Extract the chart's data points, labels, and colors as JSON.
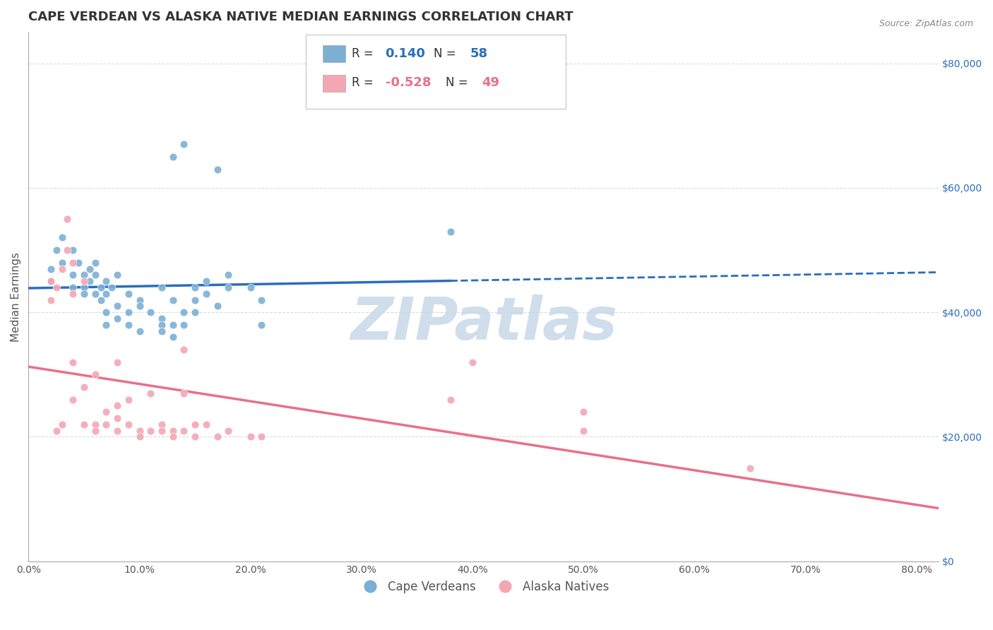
{
  "title": "CAPE VERDEAN VS ALASKA NATIVE MEDIAN EARNINGS CORRELATION CHART",
  "source": "Source: ZipAtlas.com",
  "ylabel": "Median Earnings",
  "xlabel_ticks": [
    "0.0%",
    "10.0%",
    "20.0%",
    "30.0%",
    "40.0%",
    "50.0%",
    "60.0%",
    "70.0%",
    "80.0%"
  ],
  "xlabel_vals": [
    0.0,
    0.1,
    0.2,
    0.3,
    0.4,
    0.5,
    0.6,
    0.7,
    0.8
  ],
  "ytick_labels": [
    "$0",
    "$20,000",
    "$40,000",
    "$60,000",
    "$80,000"
  ],
  "ytick_vals": [
    0,
    20000,
    40000,
    60000,
    80000
  ],
  "ylim": [
    0,
    85000
  ],
  "xlim": [
    0.0,
    0.82
  ],
  "blue_r": "0.140",
  "blue_n": "58",
  "pink_r": "-0.528",
  "pink_n": "49",
  "blue_color": "#7BAFD4",
  "pink_color": "#F4A7B3",
  "blue_line_color": "#2A6EBB",
  "pink_line_color": "#E8708A",
  "blue_scatter": [
    [
      0.02,
      45000
    ],
    [
      0.02,
      47000
    ],
    [
      0.025,
      50000
    ],
    [
      0.03,
      48000
    ],
    [
      0.03,
      52000
    ],
    [
      0.04,
      46000
    ],
    [
      0.04,
      44000
    ],
    [
      0.04,
      50000
    ],
    [
      0.045,
      48000
    ],
    [
      0.05,
      46000
    ],
    [
      0.05,
      44000
    ],
    [
      0.05,
      43000
    ],
    [
      0.055,
      45000
    ],
    [
      0.055,
      47000
    ],
    [
      0.06,
      46000
    ],
    [
      0.06,
      43000
    ],
    [
      0.06,
      48000
    ],
    [
      0.065,
      44000
    ],
    [
      0.065,
      42000
    ],
    [
      0.07,
      45000
    ],
    [
      0.07,
      43000
    ],
    [
      0.07,
      40000
    ],
    [
      0.07,
      38000
    ],
    [
      0.075,
      44000
    ],
    [
      0.08,
      46000
    ],
    [
      0.08,
      41000
    ],
    [
      0.08,
      39000
    ],
    [
      0.09,
      43000
    ],
    [
      0.09,
      40000
    ],
    [
      0.09,
      38000
    ],
    [
      0.1,
      42000
    ],
    [
      0.1,
      37000
    ],
    [
      0.1,
      41000
    ],
    [
      0.11,
      40000
    ],
    [
      0.12,
      39000
    ],
    [
      0.12,
      38000
    ],
    [
      0.12,
      37000
    ],
    [
      0.12,
      44000
    ],
    [
      0.13,
      42000
    ],
    [
      0.13,
      38000
    ],
    [
      0.13,
      36000
    ],
    [
      0.14,
      40000
    ],
    [
      0.14,
      38000
    ],
    [
      0.15,
      44000
    ],
    [
      0.15,
      42000
    ],
    [
      0.15,
      40000
    ],
    [
      0.16,
      45000
    ],
    [
      0.16,
      43000
    ],
    [
      0.17,
      41000
    ],
    [
      0.18,
      46000
    ],
    [
      0.18,
      44000
    ],
    [
      0.2,
      44000
    ],
    [
      0.21,
      42000
    ],
    [
      0.21,
      38000
    ],
    [
      0.13,
      65000
    ],
    [
      0.14,
      67000
    ],
    [
      0.17,
      63000
    ],
    [
      0.38,
      53000
    ]
  ],
  "pink_scatter": [
    [
      0.02,
      45000
    ],
    [
      0.02,
      42000
    ],
    [
      0.025,
      44000
    ],
    [
      0.025,
      21000
    ],
    [
      0.03,
      22000
    ],
    [
      0.03,
      47000
    ],
    [
      0.035,
      55000
    ],
    [
      0.035,
      50000
    ],
    [
      0.04,
      48000
    ],
    [
      0.04,
      43000
    ],
    [
      0.04,
      32000
    ],
    [
      0.04,
      26000
    ],
    [
      0.05,
      28000
    ],
    [
      0.05,
      22000
    ],
    [
      0.05,
      45000
    ],
    [
      0.06,
      30000
    ],
    [
      0.06,
      22000
    ],
    [
      0.06,
      21000
    ],
    [
      0.07,
      24000
    ],
    [
      0.07,
      22000
    ],
    [
      0.08,
      32000
    ],
    [
      0.08,
      25000
    ],
    [
      0.08,
      23000
    ],
    [
      0.08,
      21000
    ],
    [
      0.09,
      26000
    ],
    [
      0.09,
      22000
    ],
    [
      0.1,
      21000
    ],
    [
      0.1,
      20000
    ],
    [
      0.11,
      27000
    ],
    [
      0.11,
      21000
    ],
    [
      0.12,
      22000
    ],
    [
      0.12,
      21000
    ],
    [
      0.13,
      21000
    ],
    [
      0.13,
      20000
    ],
    [
      0.14,
      34000
    ],
    [
      0.14,
      27000
    ],
    [
      0.14,
      21000
    ],
    [
      0.15,
      22000
    ],
    [
      0.15,
      20000
    ],
    [
      0.16,
      22000
    ],
    [
      0.17,
      20000
    ],
    [
      0.18,
      21000
    ],
    [
      0.2,
      20000
    ],
    [
      0.21,
      20000
    ],
    [
      0.38,
      26000
    ],
    [
      0.4,
      32000
    ],
    [
      0.5,
      24000
    ],
    [
      0.65,
      15000
    ],
    [
      0.5,
      21000
    ]
  ],
  "watermark_text": "ZIPatlas",
  "watermark_color": "#C8D8E8",
  "watermark_fontsize": 60,
  "legend_label_blue": "Cape Verdeans",
  "legend_label_pink": "Alaska Natives",
  "title_fontsize": 13,
  "axis_label_fontsize": 11,
  "tick_fontsize": 10,
  "right_tick_color": "#2A6EBB",
  "grid_color": "#CCCCCC",
  "grid_style": "--",
  "grid_alpha": 0.7
}
